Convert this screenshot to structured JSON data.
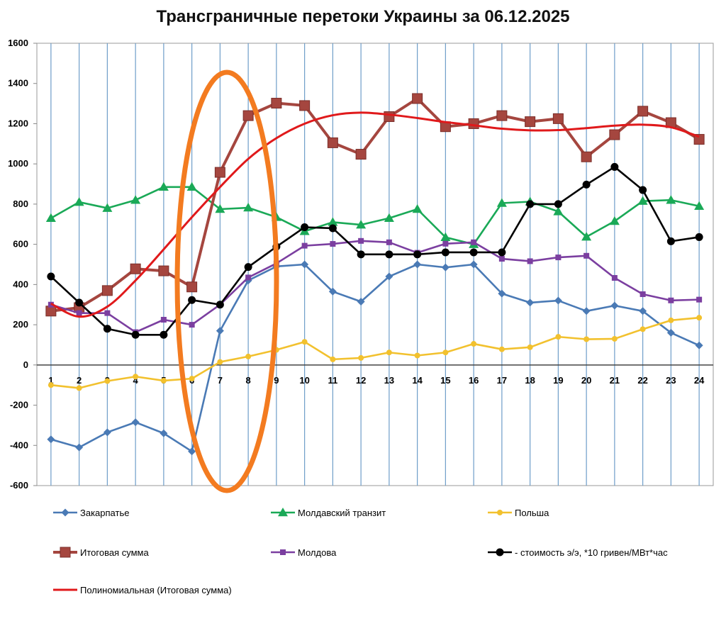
{
  "chart_data": {
    "type": "line",
    "title": "Трансграничные перетоки Украины за 06.12.2025",
    "x": [
      1,
      2,
      3,
      4,
      5,
      6,
      7,
      8,
      9,
      10,
      11,
      12,
      13,
      14,
      15,
      16,
      17,
      18,
      19,
      20,
      21,
      22,
      23,
      24
    ],
    "ylim": [
      -600,
      1600
    ],
    "yticks": [
      -600,
      -400,
      -200,
      0,
      200,
      400,
      600,
      800,
      1000,
      1200,
      1400,
      1600
    ],
    "grid": "vertical",
    "legend_position": "bottom",
    "series": [
      {
        "name": "Закарпатье",
        "color": "#4a7ab5",
        "marker": "diamond",
        "values": [
          -370,
          -410,
          -335,
          -285,
          -340,
          -430,
          170,
          420,
          490,
          500,
          365,
          315,
          440,
          500,
          485,
          500,
          355,
          310,
          320,
          268,
          295,
          268,
          160,
          97
        ]
      },
      {
        "name": "Молдавский транзит",
        "color": "#1aa957",
        "marker": "triangle",
        "values": [
          730,
          810,
          780,
          820,
          885,
          885,
          775,
          782,
          735,
          665,
          710,
          697,
          730,
          775,
          635,
          600,
          805,
          812,
          763,
          637,
          715,
          815,
          820,
          790
        ]
      },
      {
        "name": "Польша",
        "color": "#f2c12e",
        "marker": "circle-small",
        "values": [
          -100,
          -115,
          -80,
          -58,
          -78,
          -68,
          15,
          42,
          75,
          115,
          28,
          35,
          62,
          47,
          62,
          105,
          78,
          88,
          140,
          128,
          130,
          178,
          222,
          235
        ]
      },
      {
        "name": "Итоговая сумма",
        "color": "#a5463f",
        "marker": "square",
        "values": [
          268,
          285,
          370,
          478,
          468,
          388,
          958,
          1240,
          1302,
          1290,
          1105,
          1048,
          1235,
          1325,
          1185,
          1200,
          1240,
          1210,
          1225,
          1035,
          1145,
          1262,
          1205,
          1122
        ]
      },
      {
        "name": "Молдова",
        "color": "#7b3fa0",
        "marker": "square-small",
        "values": [
          300,
          258,
          258,
          163,
          225,
          200,
          300,
          435,
          505,
          593,
          602,
          617,
          610,
          558,
          603,
          610,
          528,
          516,
          535,
          543,
          433,
          352,
          321,
          325
        ]
      },
      {
        "name": "- стоимость э/э, *10 гривен/МВт*час",
        "color": "#000000",
        "marker": "circle",
        "values": [
          440,
          310,
          180,
          150,
          150,
          323,
          300,
          487,
          588,
          685,
          680,
          550,
          550,
          550,
          560,
          560,
          560,
          800,
          800,
          897,
          985,
          870,
          615,
          636
        ]
      },
      {
        "name": "Полиномиальная (Итоговая сумма)",
        "color": "#e0191b",
        "marker": "none",
        "values": [
          305,
          240,
          290,
          420,
          575,
          735,
          885,
          1025,
          1128,
          1200,
          1242,
          1255,
          1245,
          1228,
          1208,
          1192,
          1175,
          1167,
          1168,
          1178,
          1190,
          1195,
          1182,
          1135
        ]
      }
    ]
  }
}
